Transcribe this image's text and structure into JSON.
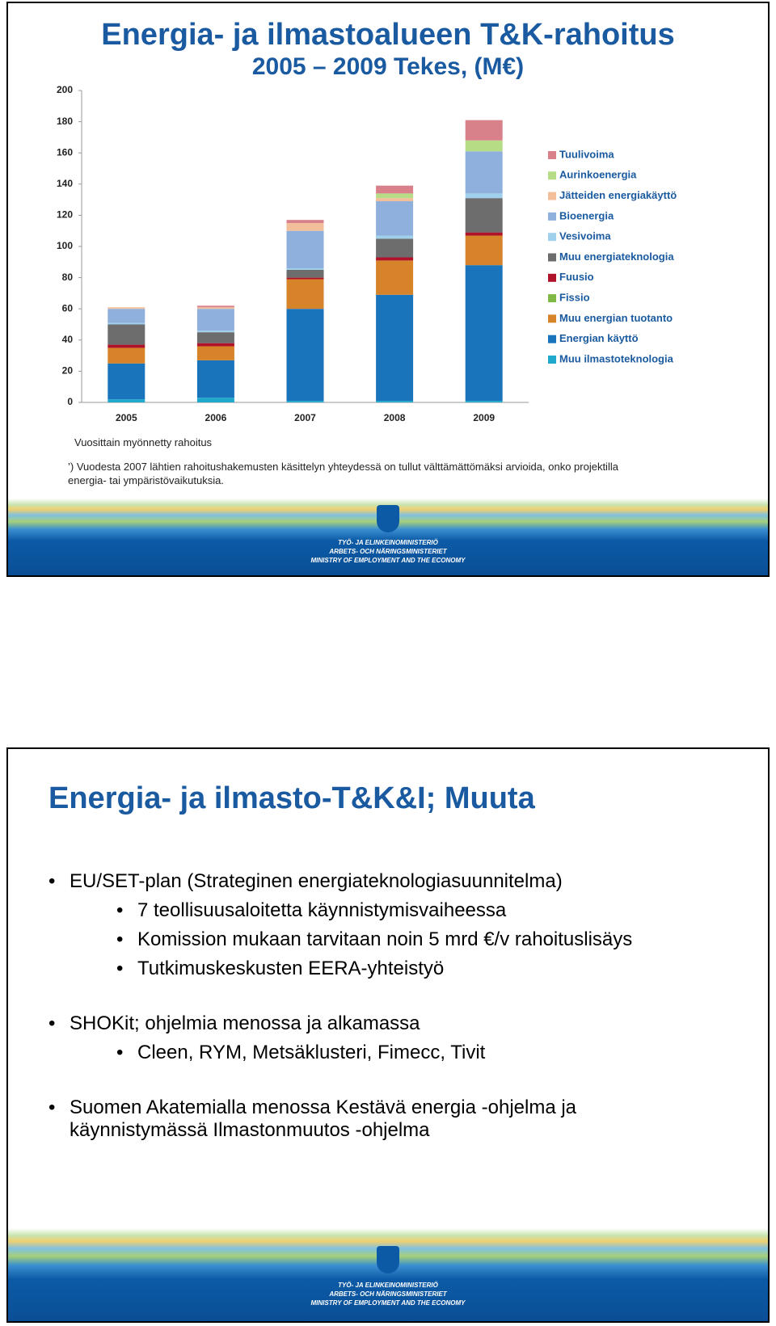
{
  "slide1": {
    "title": "Energia- ja ilmastoalueen T&K-rahoitus",
    "subtitle": "2005 – 2009 Tekes, (M€)",
    "chart_data": {
      "type": "stacked-bar",
      "categories": [
        "2005",
        "2006",
        "2007",
        "2008",
        "2009"
      ],
      "ylim": [
        0,
        200
      ],
      "yticks": [
        0,
        20,
        40,
        60,
        80,
        100,
        120,
        140,
        160,
        180,
        200
      ],
      "series": [
        {
          "name": "Muu ilmastoteknologia",
          "color": "#21a9cc",
          "values": [
            2,
            3,
            1,
            1,
            1
          ]
        },
        {
          "name": "Energian käyttö",
          "color": "#1a74bb",
          "values": [
            23,
            24,
            59,
            68,
            87
          ]
        },
        {
          "name": "Muu energian tuotanto",
          "color": "#d6832a",
          "values": [
            10,
            9,
            19,
            22,
            19
          ]
        },
        {
          "name": "Fissio",
          "color": "#7fb844",
          "values": [
            0,
            0,
            0,
            0,
            0
          ]
        },
        {
          "name": "Fuusio",
          "color": "#b0122a",
          "values": [
            2,
            2,
            1,
            2,
            2
          ]
        },
        {
          "name": "Muu energiateknologia",
          "color": "#6d6d6d",
          "values": [
            13,
            7,
            5,
            12,
            22
          ]
        },
        {
          "name": "Vesivoima",
          "color": "#9fd0ec",
          "values": [
            1,
            1,
            1,
            2,
            3
          ]
        },
        {
          "name": "Bioenergia",
          "color": "#8fb0dc",
          "values": [
            9,
            14,
            24,
            22,
            27
          ]
        },
        {
          "name": "Jätteiden energiakäyttö",
          "color": "#f3bf9a",
          "values": [
            1,
            1,
            5,
            2,
            0
          ]
        },
        {
          "name": "Aurinkoenergia",
          "color": "#b7dc86",
          "values": [
            0,
            0,
            0,
            3,
            7
          ]
        },
        {
          "name": "Tuulivoima",
          "color": "#d9818a",
          "values": [
            0,
            1,
            2,
            5,
            13
          ]
        }
      ]
    },
    "note1": "Vuosittain myönnetty rahoitus",
    "note2": "’) Vuodesta 2007 lähtien rahoitushakemusten käsittelyn yhteydessä on tullut välttämättömäksi arvioida, onko projektilla energia- tai ympäristövaikutuksia.",
    "ministry": [
      "TYÖ- JA ELINKEINOMINISTERIÖ",
      "ARBETS- OCH NÄRINGSMINISTERIET",
      "MINISTRY OF EMPLOYMENT AND THE ECONOMY"
    ]
  },
  "slide2": {
    "title": "Energia- ja ilmasto-T&K&I;  Muuta",
    "bullets": [
      {
        "text": "EU/SET-plan (Strateginen energiateknologiasuunnitelma)",
        "sub": [
          "7 teollisuusaloitetta käynnistymisvaiheessa",
          "Komission mukaan tarvitaan noin 5 mrd €/v rahoituslisäys",
          "Tutkimuskeskusten EERA-yhteistyö"
        ]
      },
      {
        "text": "SHOKit; ohjelmia menossa ja alkamassa",
        "sub": [
          "Cleen, RYM, Metsäklusteri, Fimecc, Tivit"
        ]
      },
      {
        "text": "Suomen Akatemialla menossa Kestävä energia -ohjelma ja käynnistymässä Ilmastonmuutos -ohjelma",
        "sub": []
      }
    ],
    "ministry": [
      "TYÖ- JA ELINKEINOMINISTERIÖ",
      "ARBETS- OCH NÄRINGSMINISTERIET",
      "MINISTRY OF EMPLOYMENT AND THE ECONOMY"
    ]
  }
}
